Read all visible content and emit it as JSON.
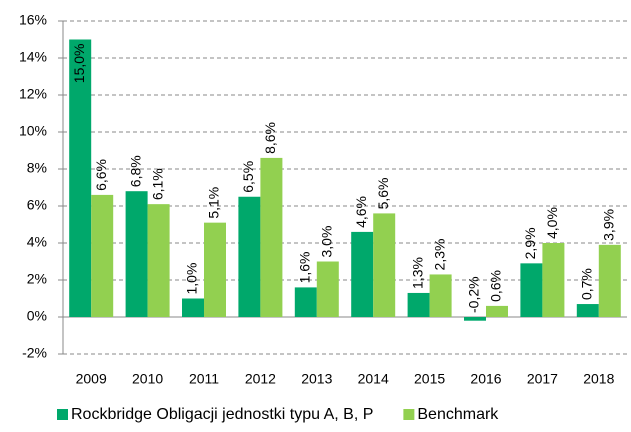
{
  "chart_data": {
    "type": "bar",
    "categories": [
      "2009",
      "2010",
      "2011",
      "2012",
      "2013",
      "2014",
      "2015",
      "2016",
      "2017",
      "2018"
    ],
    "series": [
      {
        "name": "Rockbridge Obligacji jednostki typu A, B, P",
        "color": "#00a86b",
        "values": [
          15.0,
          6.8,
          1.0,
          6.5,
          1.6,
          4.6,
          1.3,
          -0.2,
          2.9,
          0.7
        ],
        "value_labels": [
          "15,0%",
          "6,8%",
          "1,0%",
          "6,5%",
          "1,6%",
          "4,6%",
          "1,3%",
          "-0,2%",
          "2,9%",
          "0,7%"
        ]
      },
      {
        "name": "Benchmark",
        "color": "#92d050",
        "values": [
          6.6,
          6.1,
          5.1,
          8.6,
          3.0,
          5.6,
          2.3,
          0.6,
          4.0,
          3.9
        ],
        "value_labels": [
          "6,6%",
          "6,1%",
          "5,1%",
          "8,6%",
          "3,0%",
          "5,6%",
          "2,3%",
          "0,6%",
          "4,0%",
          "3,9%"
        ]
      }
    ],
    "ylim": [
      -2,
      16
    ],
    "yticks": [
      {
        "value": -2,
        "label": "-2%"
      },
      {
        "value": 0,
        "label": "0%"
      },
      {
        "value": 2,
        "label": "2%"
      },
      {
        "value": 4,
        "label": "4%"
      },
      {
        "value": 6,
        "label": "6%"
      },
      {
        "value": 8,
        "label": "8%"
      },
      {
        "value": 10,
        "label": "10%"
      },
      {
        "value": 12,
        "label": "12%"
      },
      {
        "value": 14,
        "label": "14%"
      },
      {
        "value": 16,
        "label": "16%"
      }
    ],
    "grid": true,
    "legend": "bottom"
  }
}
